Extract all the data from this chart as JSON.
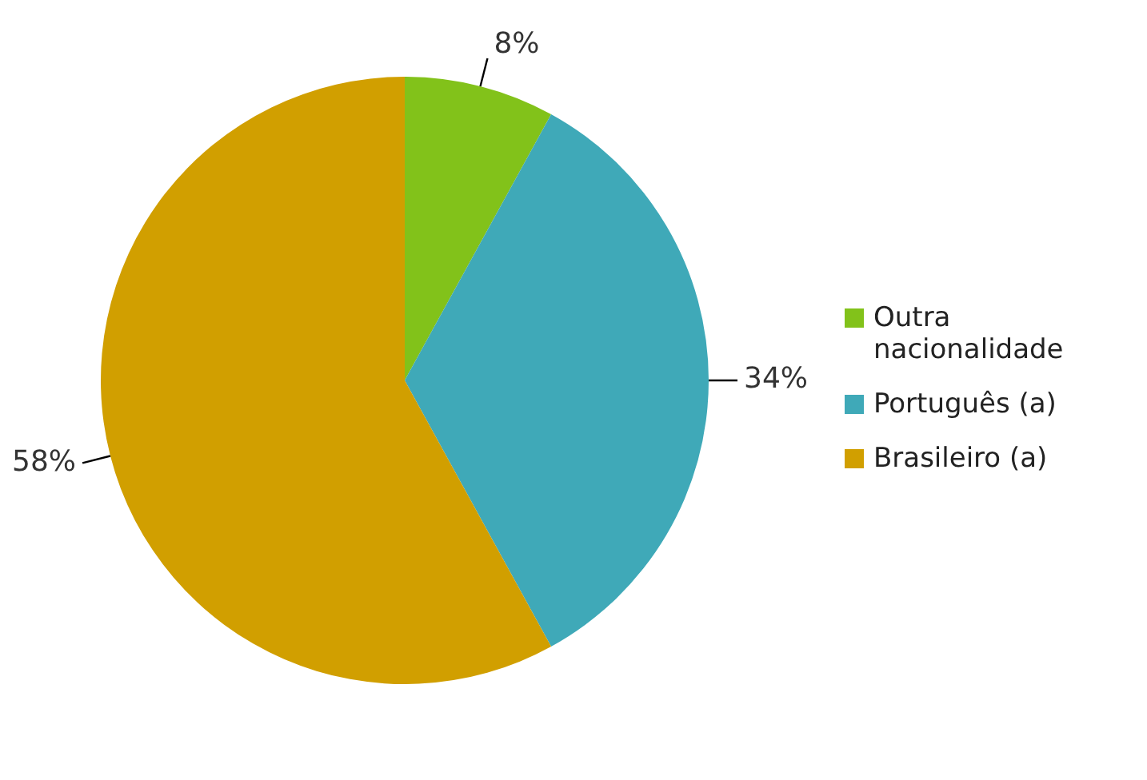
{
  "chart_data": {
    "type": "pie",
    "categories": [
      "Outra nacionalidade",
      "Português (a)",
      "Brasileiro (a)"
    ],
    "values": [
      8,
      34,
      58
    ],
    "colors": [
      "#82c21a",
      "#3fa9b8",
      "#d19f00"
    ],
    "value_labels": [
      "8%",
      "34%",
      "58%"
    ],
    "legend": "right"
  }
}
